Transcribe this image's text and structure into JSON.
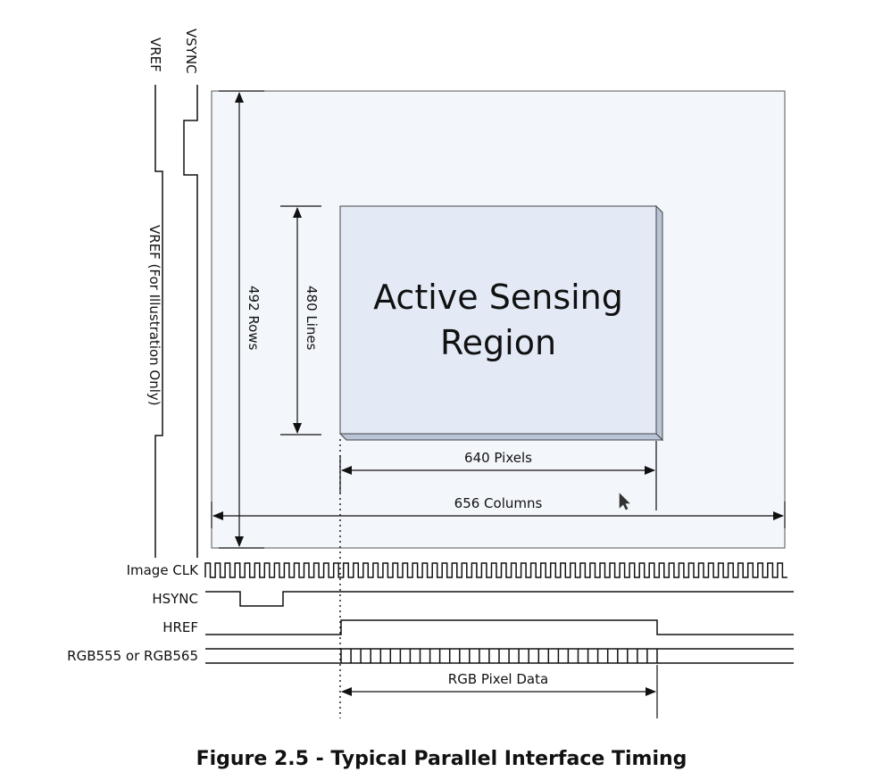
{
  "diagram": {
    "signals": {
      "vref": "VREF",
      "vsync": "VSYNC",
      "vref_note": "VREF (For Illustration Only)",
      "image_clk": "Image CLK",
      "hsync": "HSYNC",
      "href": "HREF",
      "rgb": "RGB555 or RGB565"
    },
    "dimensions": {
      "rows": "492 Rows",
      "lines": "480 Lines",
      "pixels": "640 Pixels",
      "columns": "656 Columns",
      "pixel_data": "RGB Pixel Data"
    },
    "active_region": {
      "line1": "Active Sensing",
      "line2": "Region"
    },
    "colors": {
      "frame_fill": "#f3f6fb",
      "active_fill": "#e3eaf6",
      "active_side": "#b9c4d6",
      "line": "#111111"
    }
  },
  "caption": "Figure 2.5 - Typical Parallel Interface Timing"
}
